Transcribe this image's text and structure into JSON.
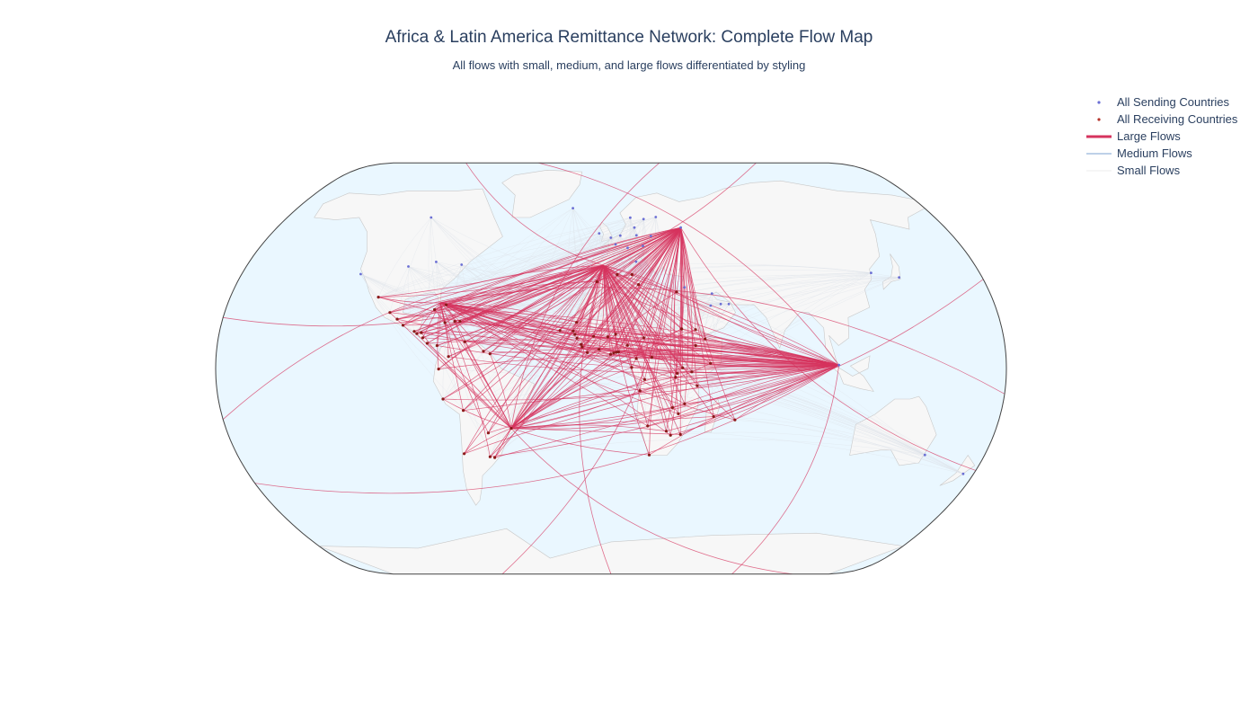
{
  "title": "Africa & Latin America Remittance Network: Complete Flow Map",
  "subtitle": "All flows with small, medium, and large flows differentiated by styling",
  "legend": [
    {
      "label": "All Sending Countries",
      "kind": "point",
      "color": "#6b6fd4"
    },
    {
      "label": "All Receiving Countries",
      "kind": "point",
      "color": "#b5342b"
    },
    {
      "label": "Large Flows",
      "kind": "line",
      "color": "#d6335e"
    },
    {
      "label": "Medium Flows",
      "kind": "line",
      "color": "#a9c2e0"
    },
    {
      "label": "Small Flows",
      "kind": "line",
      "color": "#eeeeee"
    }
  ],
  "colors": {
    "ocean": "#eaf7ff",
    "land": "#f7f7f7",
    "coast": "#c8c8c8",
    "frame": "#444444",
    "large_flow": "#d6335e",
    "medium_flow": "#a9c2e0",
    "small_flow": "#dde3ea",
    "sender": "#6b6fd4",
    "receiver": "#8b1a1a"
  },
  "chart_data": {
    "type": "flow-map",
    "projection": "natural-earth",
    "hubs": [
      {
        "name": "Moscow",
        "lon": 37.6,
        "lat": 55.7
      },
      {
        "name": "Madrid",
        "lon": -3.7,
        "lat": 40.4
      },
      {
        "name": "Singapore",
        "lon": 103.8,
        "lat": 1.35
      },
      {
        "name": "Sao Paulo",
        "lon": -46.6,
        "lat": -23.5
      },
      {
        "name": "Miami",
        "lon": -80.2,
        "lat": 25.8
      }
    ],
    "senders": [
      {
        "lon": -100,
        "lat": 60
      },
      {
        "lon": -100,
        "lat": 40
      },
      {
        "lon": -122,
        "lat": 37
      },
      {
        "lon": -74,
        "lat": 40.7
      },
      {
        "lon": -87,
        "lat": 41.8
      },
      {
        "lon": -0.1,
        "lat": 51.5
      },
      {
        "lon": 2.3,
        "lat": 48.8
      },
      {
        "lon": 13.4,
        "lat": 52.5
      },
      {
        "lon": 4.9,
        "lat": 52.4
      },
      {
        "lon": 12.5,
        "lat": 41.9
      },
      {
        "lon": 18,
        "lat": 59.3
      },
      {
        "lon": 10.7,
        "lat": 59.9
      },
      {
        "lon": 24.9,
        "lat": 60.2
      },
      {
        "lon": 12.6,
        "lat": 55.7
      },
      {
        "lon": 21,
        "lat": 52.2
      },
      {
        "lon": 16.4,
        "lat": 48.2
      },
      {
        "lon": 8.5,
        "lat": 47.4
      },
      {
        "lon": -6.3,
        "lat": 53.3
      },
      {
        "lon": 37.6,
        "lat": 55.7
      },
      {
        "lon": 46.7,
        "lat": 24.7
      },
      {
        "lon": 55.3,
        "lat": 25.3
      },
      {
        "lon": 51.5,
        "lat": 25.3
      },
      {
        "lon": 47.9,
        "lat": 29.4
      },
      {
        "lon": 35.2,
        "lat": 31.8
      },
      {
        "lon": 139.7,
        "lat": 35.7
      },
      {
        "lon": 127,
        "lat": 37.5
      },
      {
        "lon": 151.2,
        "lat": -33.9
      },
      {
        "lon": 174.8,
        "lat": -41.3
      },
      {
        "lon": -21.9,
        "lat": 64.1
      },
      {
        "lon": 103.8,
        "lat": 1.35
      }
    ],
    "receivers": [
      {
        "lon": -99.1,
        "lat": 19.4
      },
      {
        "lon": -90.5,
        "lat": 14.6
      },
      {
        "lon": -89.2,
        "lat": 13.7
      },
      {
        "lon": -87.2,
        "lat": 14.1
      },
      {
        "lon": -86.3,
        "lat": 12.1
      },
      {
        "lon": -84.1,
        "lat": 9.9
      },
      {
        "lon": -79.5,
        "lat": 9
      },
      {
        "lon": -77.3,
        "lat": 25
      },
      {
        "lon": -76.8,
        "lat": 18
      },
      {
        "lon": -72.3,
        "lat": 18.5
      },
      {
        "lon": -69.9,
        "lat": 18.5
      },
      {
        "lon": -82.4,
        "lat": 23.1
      },
      {
        "lon": -74.1,
        "lat": 4.7
      },
      {
        "lon": -66.9,
        "lat": 10.5
      },
      {
        "lon": -78.5,
        "lat": -0.2
      },
      {
        "lon": -77,
        "lat": -12
      },
      {
        "lon": -68.1,
        "lat": -16.5
      },
      {
        "lon": -70.6,
        "lat": -33.4
      },
      {
        "lon": -58.4,
        "lat": -34.6
      },
      {
        "lon": -56.2,
        "lat": -34.9
      },
      {
        "lon": -57.6,
        "lat": -25.3
      },
      {
        "lon": -46.6,
        "lat": -23.5
      },
      {
        "lon": -58.2,
        "lat": 6.8
      },
      {
        "lon": -55.2,
        "lat": 5.8
      },
      {
        "lon": -110,
        "lat": 28
      },
      {
        "lon": -103,
        "lat": 22
      },
      {
        "lon": -96,
        "lat": 17
      },
      {
        "lon": -17.4,
        "lat": 14.7
      },
      {
        "lon": -16.6,
        "lat": 13.4
      },
      {
        "lon": -15.6,
        "lat": 11.9
      },
      {
        "lon": -13.7,
        "lat": 9.5
      },
      {
        "lon": -13.2,
        "lat": 8.5
      },
      {
        "lon": -10.8,
        "lat": 6.3
      },
      {
        "lon": -5.5,
        "lat": 7.5
      },
      {
        "lon": -0.2,
        "lat": 5.6
      },
      {
        "lon": 1.2,
        "lat": 6.1
      },
      {
        "lon": 2.4,
        "lat": 6.4
      },
      {
        "lon": 3.4,
        "lat": 6.5
      },
      {
        "lon": 7.5,
        "lat": 9.1
      },
      {
        "lon": -8,
        "lat": 12.6
      },
      {
        "lon": -1.5,
        "lat": 12.4
      },
      {
        "lon": 2.1,
        "lat": 13.5
      },
      {
        "lon": -15.9,
        "lat": 18.1
      },
      {
        "lon": 15,
        "lat": 12.1
      },
      {
        "lon": 11.5,
        "lat": 3.9
      },
      {
        "lon": 9.4,
        "lat": 0.4
      },
      {
        "lon": 15.3,
        "lat": -4.3
      },
      {
        "lon": 13.2,
        "lat": -8.8
      },
      {
        "lon": 18.6,
        "lat": 4.4
      },
      {
        "lon": 32.5,
        "lat": 15.6
      },
      {
        "lon": 38.7,
        "lat": 9
      },
      {
        "lon": 38.9,
        "lat": 15.3
      },
      {
        "lon": 43.1,
        "lat": 11.6
      },
      {
        "lon": 45.3,
        "lat": 2
      },
      {
        "lon": 36.8,
        "lat": -1.3
      },
      {
        "lon": 32.6,
        "lat": 0.3
      },
      {
        "lon": 30.1,
        "lat": -1.9
      },
      {
        "lon": 29.4,
        "lat": -3.4
      },
      {
        "lon": 39.3,
        "lat": -6.8
      },
      {
        "lon": 28.3,
        "lat": -15.4
      },
      {
        "lon": 33.8,
        "lat": -13.9
      },
      {
        "lon": 32.6,
        "lat": -25.9
      },
      {
        "lon": 31.1,
        "lat": -17.8
      },
      {
        "lon": 25.9,
        "lat": -24.6
      },
      {
        "lon": 17.1,
        "lat": -22.6
      },
      {
        "lon": 18.4,
        "lat": -33.9
      },
      {
        "lon": 28,
        "lat": -26.2
      },
      {
        "lon": 47.5,
        "lat": -18.9
      },
      {
        "lon": 57.5,
        "lat": -20.2
      },
      {
        "lon": 31.2,
        "lat": 30
      },
      {
        "lon": 10.2,
        "lat": 36.8
      },
      {
        "lon": 3,
        "lat": 36.8
      },
      {
        "lon": -6.8,
        "lat": 34
      },
      {
        "lon": 13.2,
        "lat": 32.9
      },
      {
        "lon": -23.5,
        "lat": 14.9
      },
      {
        "lon": 32.5,
        "lat": 15.5
      }
    ]
  }
}
